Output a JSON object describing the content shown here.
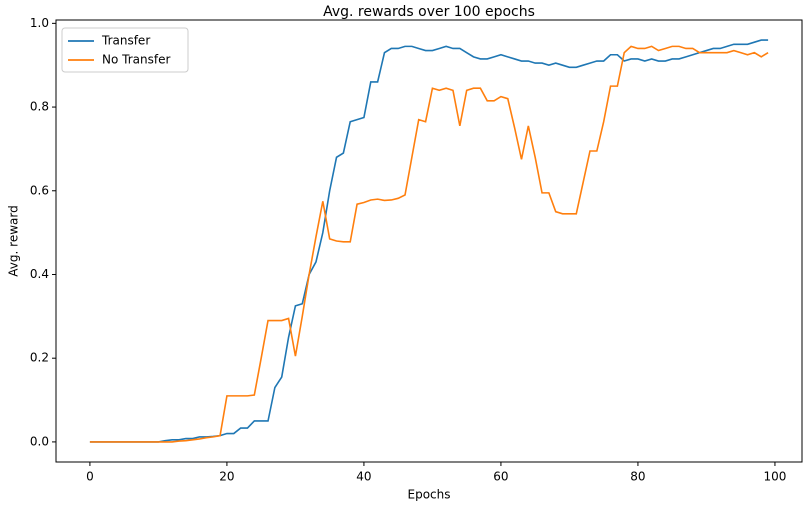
{
  "chart_data": {
    "type": "line",
    "title": "Avg. rewards over 100 epochs",
    "x_label": "Epochs",
    "y_label": "Avg. reward",
    "x": [
      0,
      1,
      2,
      3,
      4,
      5,
      6,
      7,
      8,
      9,
      10,
      11,
      12,
      13,
      14,
      15,
      16,
      17,
      18,
      19,
      20,
      21,
      22,
      23,
      24,
      25,
      26,
      27,
      28,
      29,
      30,
      31,
      32,
      33,
      34,
      35,
      36,
      37,
      38,
      39,
      40,
      41,
      42,
      43,
      44,
      45,
      46,
      47,
      48,
      49,
      50,
      51,
      52,
      53,
      54,
      55,
      56,
      57,
      58,
      59,
      60,
      61,
      62,
      63,
      64,
      65,
      66,
      67,
      68,
      69,
      70,
      71,
      72,
      73,
      74,
      75,
      76,
      77,
      78,
      79,
      80,
      81,
      82,
      83,
      84,
      85,
      86,
      87,
      88,
      89,
      90,
      91,
      92,
      93,
      94,
      95,
      96,
      97,
      98,
      99
    ],
    "series": [
      {
        "name": "Transfer",
        "color": "#1f77b4",
        "values": [
          0,
          0,
          0,
          0,
          0,
          0,
          0,
          0,
          0,
          0,
          0,
          0.003,
          0.005,
          0.005,
          0.008,
          0.008,
          0.012,
          0.012,
          0.013,
          0.015,
          0.02,
          0.02,
          0.033,
          0.033,
          0.05,
          0.05,
          0.05,
          0.13,
          0.155,
          0.25,
          0.325,
          0.33,
          0.4,
          0.43,
          0.5,
          0.6,
          0.68,
          0.69,
          0.765,
          0.77,
          0.775,
          0.86,
          0.86,
          0.93,
          0.94,
          0.94,
          0.945,
          0.945,
          0.94,
          0.935,
          0.935,
          0.94,
          0.945,
          0.94,
          0.94,
          0.93,
          0.92,
          0.915,
          0.915,
          0.92,
          0.925,
          0.92,
          0.915,
          0.91,
          0.91,
          0.905,
          0.905,
          0.9,
          0.905,
          0.9,
          0.895,
          0.895,
          0.9,
          0.905,
          0.91,
          0.91,
          0.925,
          0.925,
          0.91,
          0.915,
          0.915,
          0.91,
          0.915,
          0.91,
          0.91,
          0.915,
          0.915,
          0.92,
          0.925,
          0.93,
          0.935,
          0.94,
          0.94,
          0.945,
          0.95,
          0.95,
          0.95,
          0.955,
          0.96,
          0.96
        ]
      },
      {
        "name": "No Transfer",
        "color": "#ff7f0e",
        "values": [
          0,
          0,
          0,
          0,
          0,
          0,
          0,
          0,
          0,
          0,
          0,
          0,
          0,
          0.002,
          0.003,
          0.005,
          0.007,
          0.01,
          0.012,
          0.015,
          0.11,
          0.11,
          0.11,
          0.11,
          0.112,
          0.2,
          0.29,
          0.29,
          0.29,
          0.295,
          0.205,
          0.3,
          0.4,
          0.49,
          0.575,
          0.485,
          0.48,
          0.478,
          0.478,
          0.568,
          0.572,
          0.578,
          0.58,
          0.577,
          0.578,
          0.582,
          0.59,
          0.68,
          0.77,
          0.765,
          0.845,
          0.84,
          0.845,
          0.84,
          0.755,
          0.84,
          0.845,
          0.845,
          0.815,
          0.815,
          0.825,
          0.82,
          0.75,
          0.675,
          0.755,
          0.68,
          0.595,
          0.595,
          0.55,
          0.545,
          0.545,
          0.545,
          0.62,
          0.695,
          0.695,
          0.765,
          0.85,
          0.85,
          0.93,
          0.945,
          0.94,
          0.94,
          0.945,
          0.935,
          0.94,
          0.945,
          0.945,
          0.94,
          0.94,
          0.93,
          0.93,
          0.93,
          0.93,
          0.93,
          0.935,
          0.93,
          0.925,
          0.93,
          0.92,
          0.93
        ]
      }
    ],
    "xlim": [
      -4.95,
      103.95
    ],
    "ylim": [
      -0.048,
      1.008
    ],
    "xticks": [
      0,
      20,
      40,
      60,
      80,
      100
    ],
    "yticks": [
      {
        "value": 0,
        "label": "0.0"
      },
      0.2,
      0.4,
      0.6,
      0.8,
      {
        "value": 1,
        "label": "1.0"
      }
    ],
    "legend": "upper left"
  }
}
